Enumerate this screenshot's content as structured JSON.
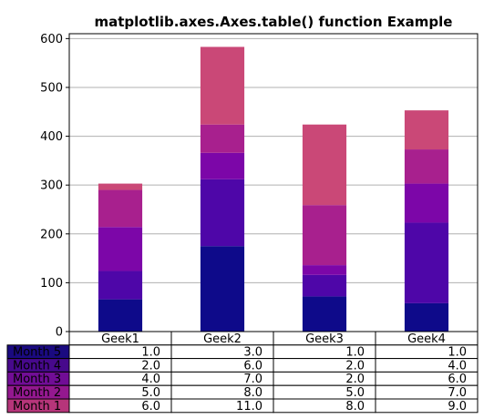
{
  "chart_data": {
    "type": "bar",
    "stacked": true,
    "title": "matplotlib.axes.Axes.table() function Example",
    "xlabel": "",
    "ylabel": "",
    "categories": [
      "Geek1",
      "Geek2",
      "Geek3",
      "Geek4"
    ],
    "ylim": [
      0,
      610
    ],
    "yticks": [
      0,
      100,
      200,
      300,
      400,
      500,
      600
    ],
    "grid": "horizontal",
    "series": [
      {
        "name": "Month 1",
        "color": "#0e0a8a",
        "values": [
          66,
          175,
          72,
          58
        ]
      },
      {
        "name": "Month 2",
        "color": "#4e06a8",
        "values": [
          58,
          137,
          44,
          165
        ]
      },
      {
        "name": "Month 3",
        "color": "#7c06a8",
        "values": [
          90,
          54,
          20,
          80
        ]
      },
      {
        "name": "Month 4",
        "color": "#a8208e",
        "values": [
          76,
          58,
          123,
          70
        ]
      },
      {
        "name": "Month 5",
        "color": "#ca4877",
        "values": [
          13,
          159,
          165,
          80
        ]
      }
    ],
    "table": {
      "columns": [
        "Geek1",
        "Geek2",
        "Geek3",
        "Geek4"
      ],
      "rows": [
        {
          "label": "Month 5",
          "color": "#1a0a80",
          "cells": [
            "1.0",
            "3.0",
            "1.0",
            "1.0"
          ]
        },
        {
          "label": "Month 4",
          "color": "#47098c",
          "cells": [
            "2.0",
            "6.0",
            "2.0",
            "4.0"
          ]
        },
        {
          "label": "Month 3",
          "color": "#710d96",
          "cells": [
            "4.0",
            "7.0",
            "2.0",
            "6.0"
          ]
        },
        {
          "label": "Month 2",
          "color": "#94188f",
          "cells": [
            "5.0",
            "8.0",
            "5.0",
            "7.0"
          ]
        },
        {
          "label": "Month 1",
          "color": "#b6357a",
          "cells": [
            "6.0",
            "11.0",
            "8.0",
            "9.0"
          ]
        }
      ]
    }
  }
}
